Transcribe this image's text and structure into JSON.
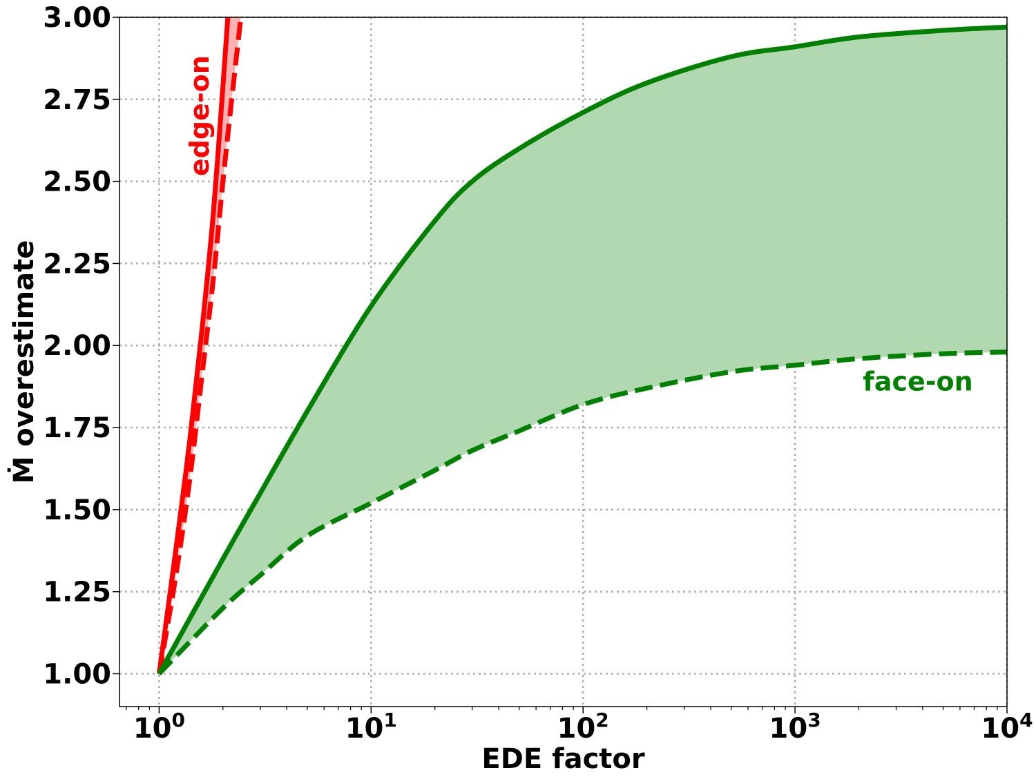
{
  "chart_data": {
    "type": "area",
    "xlabel": "EDE factor",
    "ylabel": "Ṁ overestimate",
    "xscale": "log",
    "xlim": [
      0.65,
      10000
    ],
    "ylim": [
      0.9,
      3.0
    ],
    "grid": true,
    "x_ticks": [
      {
        "value": 1,
        "base": "10",
        "exp": "0"
      },
      {
        "value": 10,
        "base": "10",
        "exp": "1"
      },
      {
        "value": 100,
        "base": "10",
        "exp": "2"
      },
      {
        "value": 1000,
        "base": "10",
        "exp": "3"
      },
      {
        "value": 10000,
        "base": "10",
        "exp": "4"
      }
    ],
    "y_ticks": [
      "1.00",
      "1.25",
      "1.50",
      "1.75",
      "2.00",
      "2.25",
      "2.50",
      "2.75",
      "3.00"
    ],
    "series": [
      {
        "name": "edge-on",
        "color": "#ff0000",
        "fill_color": "#ffb3b3",
        "upper": {
          "style": "solid",
          "x": [
            1.0,
            1.2,
            1.4,
            1.6,
            1.8,
            2.0,
            2.12
          ],
          "y": [
            1.0,
            1.38,
            1.72,
            2.06,
            2.4,
            2.79,
            3.02
          ]
        },
        "lower": {
          "style": "dashed",
          "x": [
            1.0,
            1.2,
            1.4,
            1.6,
            1.8,
            2.0,
            2.2,
            2.45
          ],
          "y": [
            1.0,
            1.3,
            1.6,
            1.92,
            2.2,
            2.5,
            2.75,
            3.02
          ]
        }
      },
      {
        "name": "face-on",
        "color": "#008000",
        "fill_color": "#b2d8b2",
        "upper": {
          "style": "solid",
          "x": [
            1,
            2,
            3,
            5,
            10,
            20,
            30,
            50,
            100,
            200,
            500,
            1000,
            2000,
            5000,
            10000
          ],
          "y": [
            1.0,
            1.35,
            1.55,
            1.8,
            2.12,
            2.38,
            2.5,
            2.6,
            2.71,
            2.8,
            2.88,
            2.91,
            2.94,
            2.96,
            2.97
          ]
        },
        "lower": {
          "style": "dashed",
          "x": [
            1,
            2,
            3,
            5,
            10,
            20,
            30,
            50,
            100,
            200,
            500,
            1000,
            2000,
            5000,
            10000
          ],
          "y": [
            1.0,
            1.2,
            1.3,
            1.42,
            1.52,
            1.62,
            1.68,
            1.74,
            1.82,
            1.87,
            1.92,
            1.94,
            1.96,
            1.975,
            1.98
          ]
        }
      }
    ],
    "annotations": [
      {
        "text": "edge-on",
        "color": "#ff0000",
        "x": 1.55,
        "y": 2.7,
        "rotation": -90
      },
      {
        "text": "face-on",
        "color": "#008000",
        "x": 3800,
        "y": 1.89,
        "rotation": 0
      }
    ]
  }
}
